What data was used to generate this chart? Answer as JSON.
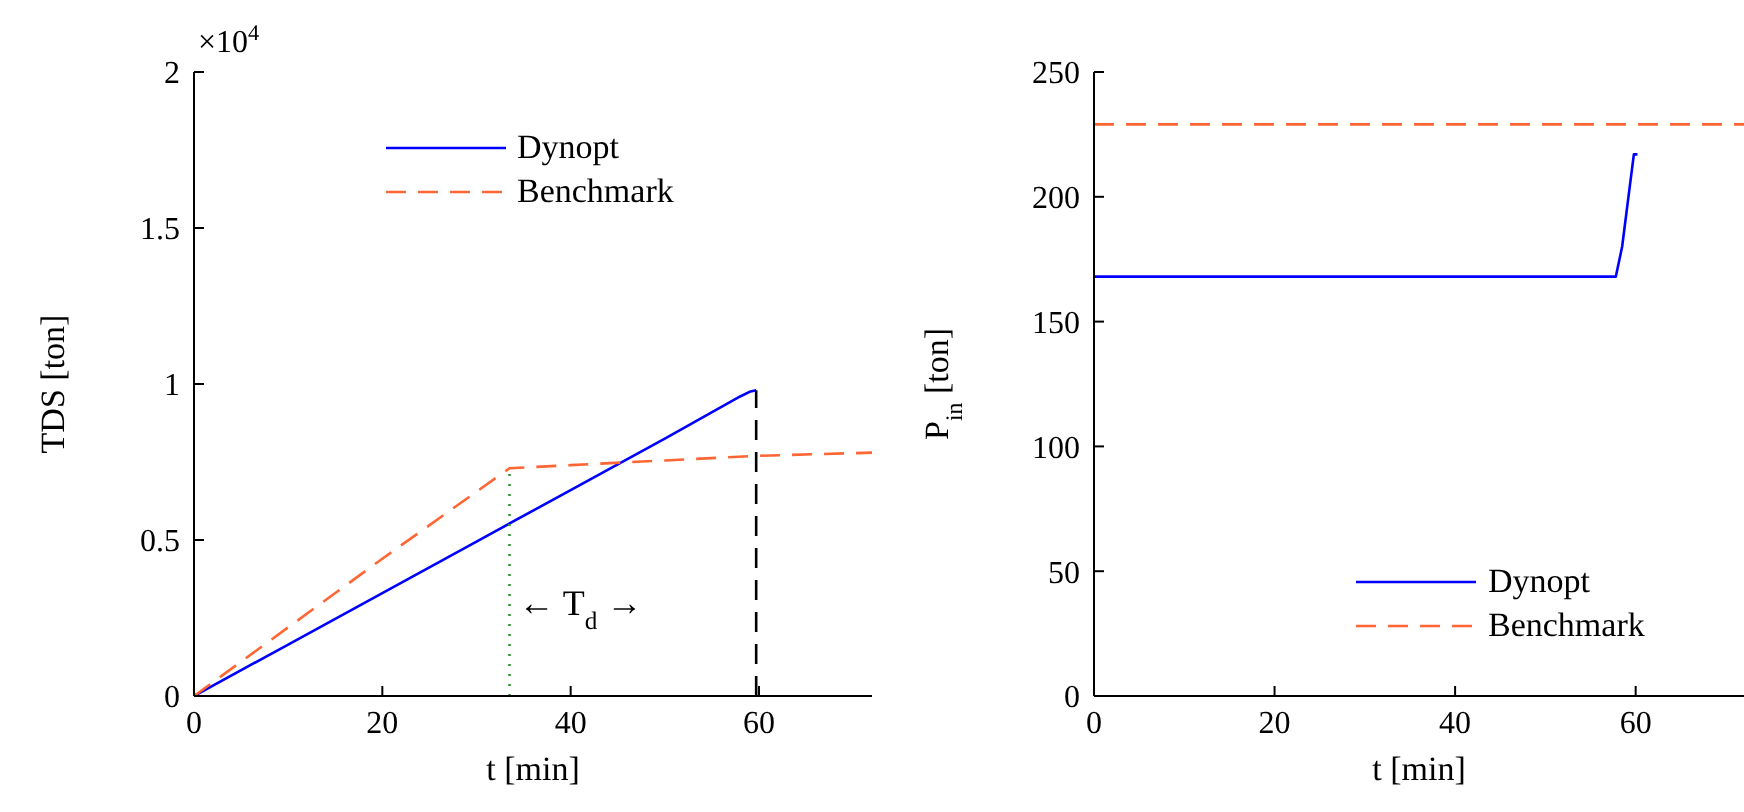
{
  "chart_data": [
    {
      "type": "line",
      "xlabel": "t [min]",
      "ylabel": "TDS [ton]",
      "annotations": [
        "×10$^{4}$",
        "← T$_{d}$ →"
      ],
      "xlim": [
        0,
        72
      ],
      "xticks": [
        0,
        20,
        40,
        60
      ],
      "ylim": [
        0,
        2
      ],
      "yticks": [
        0,
        0.5,
        1,
        1.5,
        2
      ],
      "legend": "top",
      "grid": false,
      "series": [
        {
          "name": "Dynopt",
          "color": "#0000ff",
          "line_style": "solid",
          "x": [
            0,
            10,
            20,
            30,
            40,
            50,
            58,
            59,
            59.7
          ],
          "values": [
            0,
            0.165,
            0.33,
            0.495,
            0.66,
            0.825,
            0.96,
            0.975,
            0.98
          ]
        },
        {
          "name": "Benchmark",
          "color": "#ff6633",
          "line_style": "dashed",
          "x": [
            0,
            10,
            20,
            33.5,
            40,
            50,
            60,
            72
          ],
          "values": [
            0,
            0.22,
            0.44,
            0.73,
            0.74,
            0.755,
            0.77,
            0.78
          ]
        },
        {
          "color": "#339933",
          "line_style": "dotted",
          "x": [
            33.5,
            33.5
          ],
          "values": [
            0,
            0.73
          ]
        },
        {
          "color": "#000000",
          "line_style": "dashed",
          "x": [
            59.7,
            59.7
          ],
          "values": [
            0,
            0.98
          ]
        }
      ]
    },
    {
      "type": "line",
      "xlabel": "t [min]",
      "ylabel": "P$_{in}$ [ton]",
      "xlim": [
        0,
        72
      ],
      "xticks": [
        0,
        20,
        40,
        60
      ],
      "ylim": [
        0,
        250
      ],
      "yticks": [
        0,
        50,
        100,
        150,
        200,
        250
      ],
      "legend": "bottom right",
      "grid": false,
      "series": [
        {
          "name": "Dynopt",
          "color": "#0000ff",
          "line_style": "solid",
          "x": [
            0,
            20,
            40,
            57.8,
            58.5,
            59.2,
            59.8,
            60.2
          ],
          "values": [
            168,
            168,
            168,
            168,
            180,
            200,
            217,
            217
          ]
        },
        {
          "name": "Benchmark",
          "color": "#ff6633",
          "line_style": "dashed",
          "x": [
            0,
            72
          ],
          "values": [
            229,
            229
          ]
        }
      ]
    }
  ]
}
